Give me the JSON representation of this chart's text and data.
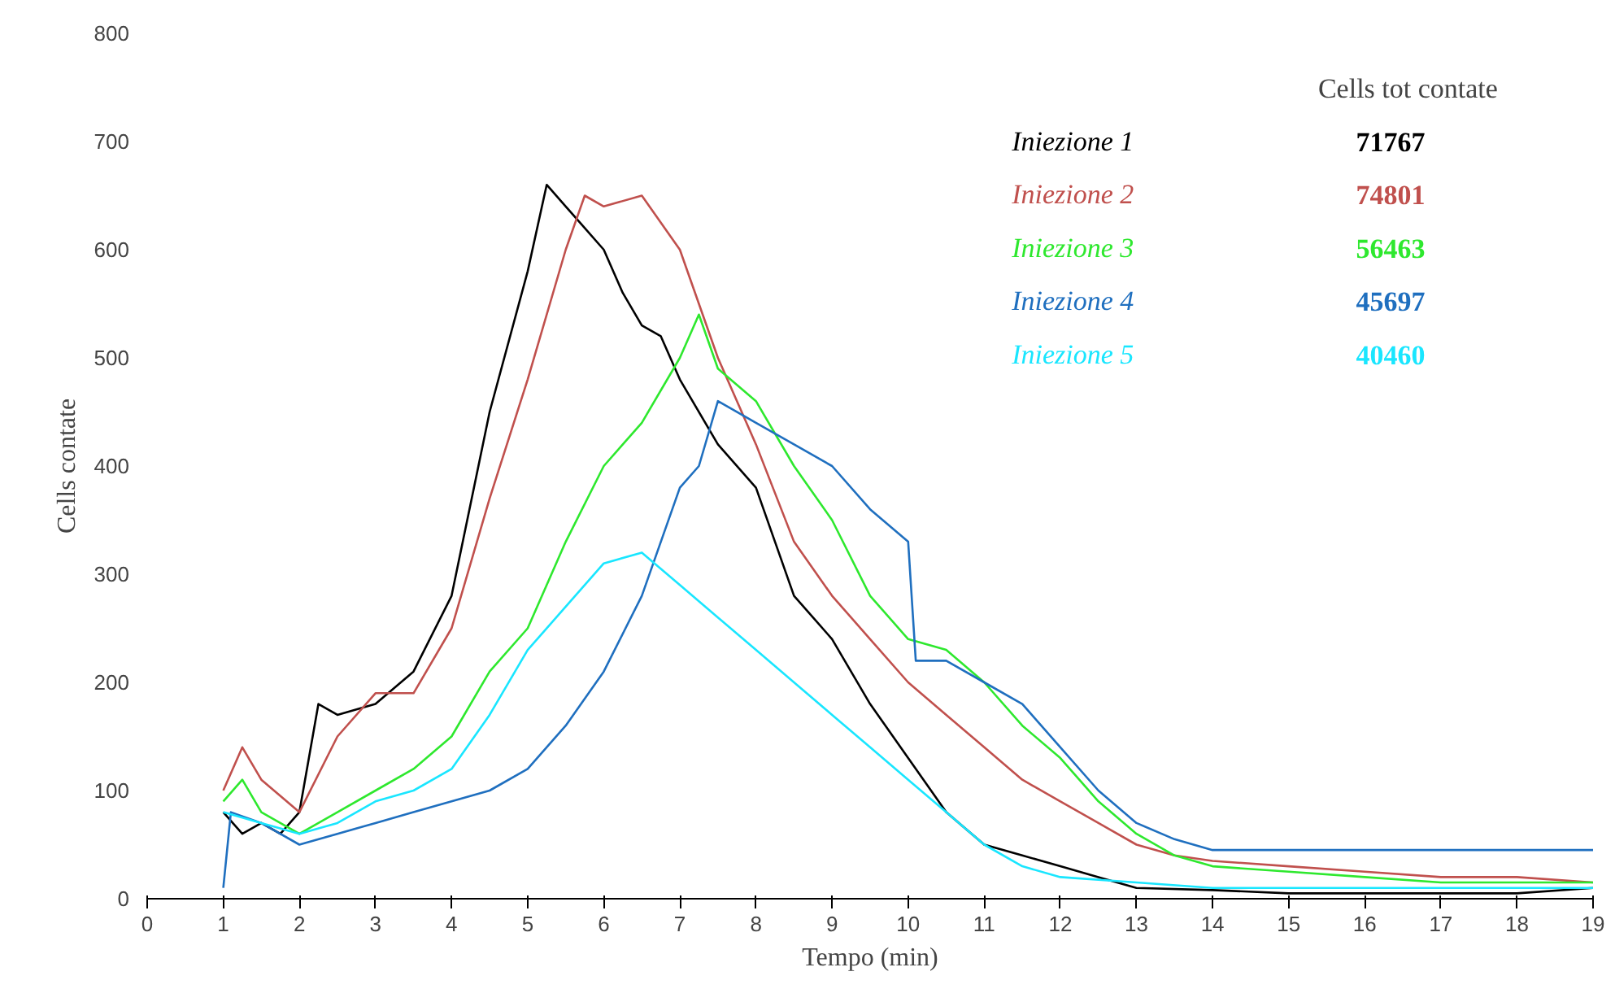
{
  "chart_data": {
    "type": "line",
    "xlabel": "Tempo (min)",
    "ylabel": "Cells contate",
    "legend_title": "Cells tot contate",
    "legend": "top right",
    "grid": false,
    "marker": "none",
    "line_style": "solid",
    "xlim": [
      0,
      19
    ],
    "xticks": [
      0,
      1,
      2,
      3,
      4,
      5,
      6,
      7,
      8,
      9,
      10,
      11,
      12,
      13,
      14,
      15,
      16,
      17,
      18,
      19
    ],
    "ylim": [
      0,
      800
    ],
    "yticks": [
      0,
      100,
      200,
      300,
      400,
      500,
      600,
      700,
      800
    ],
    "annotations": [
      "71767",
      "74801",
      "56463",
      "45697",
      "40460"
    ],
    "series": [
      {
        "name": "Iniezione 1",
        "color": "#000000",
        "x": [
          1,
          1.25,
          1.5,
          1.75,
          2,
          2.25,
          2.5,
          3,
          3.5,
          4,
          4.5,
          5,
          5.25,
          5.5,
          5.75,
          6,
          6.25,
          6.5,
          6.75,
          7,
          7.5,
          8,
          8.5,
          9,
          9.5,
          10,
          10.5,
          11,
          11.5,
          12,
          12.5,
          13,
          14,
          15,
          16,
          17,
          18,
          19
        ],
        "values": [
          80,
          60,
          70,
          60,
          80,
          180,
          170,
          180,
          210,
          280,
          450,
          580,
          660,
          640,
          620,
          600,
          560,
          530,
          520,
          480,
          420,
          380,
          280,
          240,
          180,
          130,
          80,
          50,
          40,
          30,
          20,
          10,
          8,
          5,
          5,
          5,
          5,
          10
        ]
      },
      {
        "name": "Iniezione 2",
        "color": "#c0504d",
        "x": [
          1,
          1.25,
          1.5,
          2,
          2.5,
          3,
          3.5,
          4,
          4.5,
          5,
          5.5,
          5.75,
          6,
          6.5,
          7,
          7.5,
          8,
          8.5,
          9,
          9.5,
          10,
          10.5,
          11,
          11.5,
          12,
          12.5,
          13,
          13.5,
          14,
          15,
          16,
          17,
          18,
          19
        ],
        "values": [
          100,
          140,
          110,
          80,
          150,
          190,
          190,
          250,
          370,
          480,
          600,
          650,
          640,
          650,
          600,
          500,
          420,
          330,
          280,
          240,
          200,
          170,
          140,
          110,
          90,
          70,
          50,
          40,
          35,
          30,
          25,
          20,
          20,
          15
        ]
      },
      {
        "name": "Iniezione 3",
        "color": "#2ee82e",
        "x": [
          1,
          1.25,
          1.5,
          2,
          2.5,
          3,
          3.5,
          4,
          4.5,
          5,
          5.5,
          6,
          6.5,
          7,
          7.25,
          7.5,
          8,
          8.5,
          9,
          9.5,
          10,
          10.5,
          11,
          11.5,
          12,
          12.5,
          13,
          13.5,
          14,
          15,
          16,
          17,
          18,
          19
        ],
        "values": [
          90,
          110,
          80,
          60,
          80,
          100,
          120,
          150,
          210,
          250,
          330,
          400,
          440,
          500,
          540,
          490,
          460,
          400,
          350,
          280,
          240,
          230,
          200,
          160,
          130,
          90,
          60,
          40,
          30,
          25,
          20,
          15,
          15,
          15
        ]
      },
      {
        "name": "Iniezione 4",
        "color": "#1f6fbf",
        "x": [
          1,
          1.1,
          1.5,
          2,
          2.5,
          3,
          3.5,
          4,
          4.5,
          5,
          5.5,
          6,
          6.5,
          7,
          7.25,
          7.5,
          8,
          8.5,
          9,
          9.5,
          10,
          10.1,
          10.5,
          11,
          11.5,
          12,
          12.5,
          13,
          13.5,
          14,
          15,
          16,
          17,
          18,
          19
        ],
        "values": [
          10,
          80,
          70,
          50,
          60,
          70,
          80,
          90,
          100,
          120,
          160,
          210,
          280,
          380,
          400,
          460,
          440,
          420,
          400,
          360,
          330,
          220,
          220,
          200,
          180,
          140,
          100,
          70,
          55,
          45,
          45,
          45,
          45,
          45,
          45
        ]
      },
      {
        "name": "Iniezione 5",
        "color": "#19e6ff",
        "x": [
          1,
          1.5,
          2,
          2.5,
          3,
          3.5,
          4,
          4.5,
          5,
          5.5,
          6,
          6.5,
          7,
          7.5,
          8,
          8.5,
          9,
          9.5,
          10,
          10.5,
          11,
          11.5,
          12,
          13,
          14,
          15,
          16,
          17,
          18,
          19
        ],
        "values": [
          80,
          70,
          60,
          70,
          90,
          100,
          120,
          170,
          230,
          270,
          310,
          320,
          290,
          260,
          230,
          200,
          170,
          140,
          110,
          80,
          50,
          30,
          20,
          15,
          10,
          10,
          10,
          10,
          10,
          10
        ]
      }
    ]
  }
}
